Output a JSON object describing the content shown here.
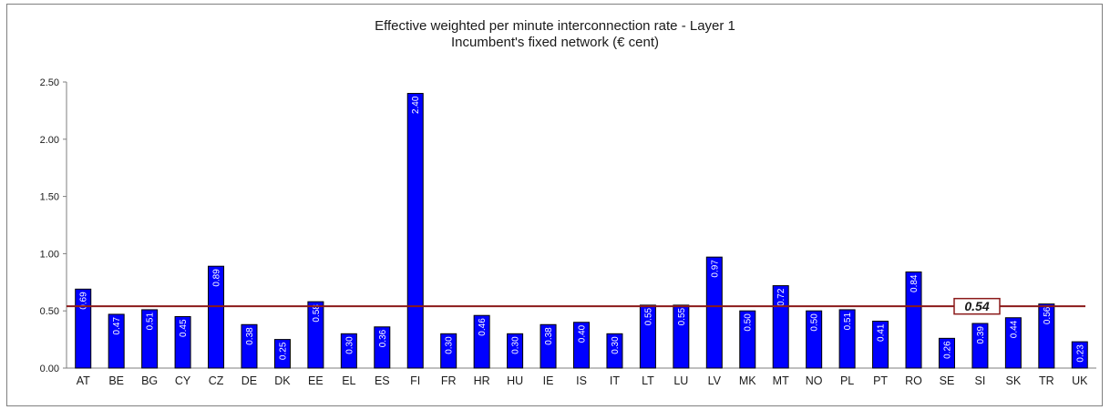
{
  "chart_data": {
    "type": "bar",
    "title": "Effective weighted per minute interconnection rate - Layer 1",
    "subtitle": "Incumbent's fixed network  (€ cent)",
    "categories": [
      "AT",
      "BE",
      "BG",
      "CY",
      "CZ",
      "DE",
      "DK",
      "EE",
      "EL",
      "ES",
      "FI",
      "FR",
      "HR",
      "HU",
      "IE",
      "IS",
      "IT",
      "LT",
      "LU",
      "LV",
      "MK",
      "MT",
      "NO",
      "PL",
      "PT",
      "RO",
      "SE",
      "SI",
      "SK",
      "TR",
      "UK"
    ],
    "values": [
      0.69,
      0.47,
      0.51,
      0.45,
      0.89,
      0.38,
      0.25,
      0.58,
      0.3,
      0.36,
      2.4,
      0.3,
      0.46,
      0.3,
      0.38,
      0.4,
      0.3,
      0.55,
      0.55,
      0.97,
      0.5,
      0.72,
      0.5,
      0.51,
      0.41,
      0.84,
      0.26,
      0.39,
      0.44,
      0.56,
      0.23
    ],
    "value_labels": [
      "0.69",
      "0.47",
      "0.51",
      "0.45",
      "0.89",
      "0.38",
      "0.25",
      "0.58",
      "0.30",
      "0.36",
      "2.40",
      "0.30",
      "0.46",
      "0.30",
      "0.38",
      "0.40",
      "0.30",
      "0.55",
      "0.55",
      "0.97",
      "0.50",
      "0.72",
      "0.50",
      "0.51",
      "0.41",
      "0.84",
      "0.26",
      "0.39",
      "0.44",
      "0.56",
      "0.23"
    ],
    "ylim": [
      0,
      2.5
    ],
    "yticks": [
      "0.00",
      "0.50",
      "1.00",
      "1.50",
      "2.00",
      "2.50"
    ],
    "average": {
      "value": 0.54,
      "label": "0.54",
      "color": "#8b1a1a"
    },
    "bar_color": "#0000ff",
    "grid": false,
    "xlabel": "",
    "ylabel": ""
  }
}
